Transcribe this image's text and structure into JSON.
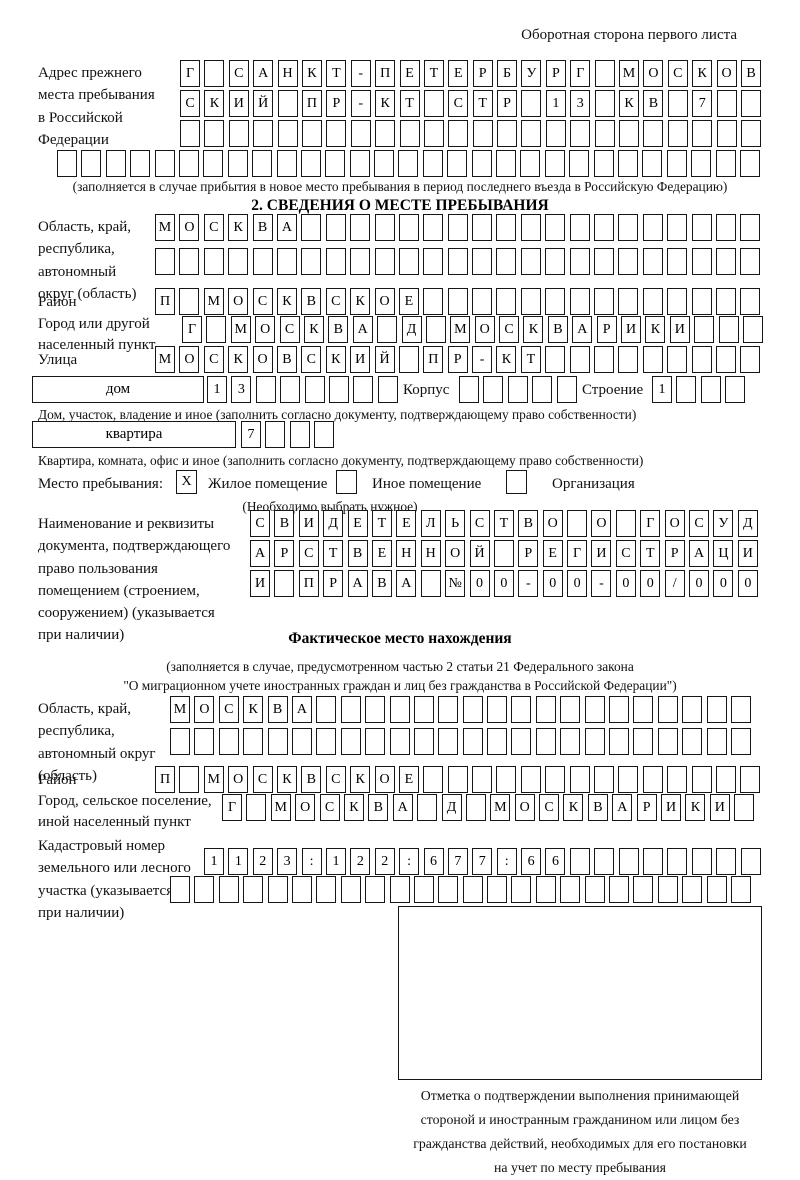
{
  "header_note": "Оборотная сторона первого листа",
  "prev_address": {
    "label": [
      "Адрес прежнего",
      "места пребывания",
      "в Российской",
      "Федерации"
    ],
    "row1": [
      "Г",
      "",
      "С",
      "А",
      "Н",
      "К",
      "Т",
      "-",
      "П",
      "Е",
      "Т",
      "Е",
      "Р",
      "Б",
      "У",
      "Р",
      "Г",
      "",
      "М",
      "О",
      "С",
      "К",
      "О",
      "В"
    ],
    "row2": [
      "С",
      "К",
      "И",
      "Й",
      "",
      "П",
      "Р",
      "-",
      "К",
      "Т",
      "",
      "С",
      "Т",
      "Р",
      "",
      "1",
      "3",
      "",
      "К",
      "В",
      "",
      "7",
      "",
      ""
    ],
    "caption": "(заполняется в случае прибытия в новое место пребывания в период последнего въезда в Российскую Федерацию)"
  },
  "section2": {
    "title": "2. СВЕДЕНИЯ О МЕСТЕ ПРЕБЫВАНИЯ",
    "region_label": [
      "Область, край,",
      "республика,",
      "автономный",
      "округ (область)"
    ],
    "region_row1": [
      "М",
      "О",
      "С",
      "К",
      "В",
      "А"
    ],
    "district_label": "Район",
    "district_row": [
      "П",
      "",
      "М",
      "О",
      "С",
      "К",
      "В",
      "С",
      "К",
      "О",
      "Е"
    ],
    "city_label": [
      "Город или другой",
      "населенный пункт"
    ],
    "city_row": [
      "Г",
      "",
      "М",
      "О",
      "С",
      "К",
      "В",
      "А",
      "",
      "Д",
      "",
      "М",
      "О",
      "С",
      "К",
      "В",
      "А",
      "Р",
      "И",
      "К",
      "И"
    ],
    "street_label": "Улица",
    "street_row": [
      "М",
      "О",
      "С",
      "К",
      "О",
      "В",
      "С",
      "К",
      "И",
      "Й",
      "",
      "П",
      "Р",
      "-",
      "К",
      "Т"
    ],
    "house_box_label": "дом",
    "house_cells": [
      "1",
      "3"
    ],
    "korpus_label": "Корпус",
    "stroenie_label": "Строение",
    "stroenie_cells": [
      "1"
    ],
    "house_caption": "Дом, участок, владение и иное (заполнить согласно документу, подтверждающему право собственности)",
    "flat_box_label": "квартира",
    "flat_cells": [
      "7"
    ],
    "flat_caption": "Квартира, комната, офис и иное (заполнить согласно документу, подтверждающему право собственности)",
    "stay_label": "Место пребывания:",
    "stay_checked": "X",
    "option_residential": "Жилое помещение",
    "option_other": "Иное помещение",
    "option_org": "Организация",
    "stay_note": "(Необходимо выбрать нужное)"
  },
  "doc": {
    "label": [
      "Наименование и реквизиты",
      "документа, подтверждающего",
      "право пользования",
      "помещением (строением,",
      "сооружением) (указывается",
      "при наличии)"
    ],
    "row1": [
      "С",
      "В",
      "И",
      "Д",
      "Е",
      "Т",
      "Е",
      "Л",
      "Ь",
      "С",
      "Т",
      "В",
      "О",
      "",
      "О",
      "",
      "Г",
      "О",
      "С",
      "У",
      "Д"
    ],
    "row2": [
      "А",
      "Р",
      "С",
      "Т",
      "В",
      "Е",
      "Н",
      "Н",
      "О",
      "Й",
      "",
      "Р",
      "Е",
      "Г",
      "И",
      "С",
      "Т",
      "Р",
      "А",
      "Ц",
      "И"
    ],
    "row3": [
      "И",
      "",
      "П",
      "Р",
      "А",
      "В",
      "А",
      "",
      "№",
      "0",
      "0",
      "-",
      "0",
      "0",
      "-",
      "0",
      "0",
      "/",
      "0",
      "0",
      "0"
    ]
  },
  "actual": {
    "title": "Фактическое место нахождения",
    "subtitle": [
      "(заполняется в случае, предусмотренном частью 2 статьи 21 Федерального закона",
      "\"О миграционном учете иностранных граждан и лиц без гражданства в Российской Федерации\")"
    ],
    "region_label": [
      "Область, край,",
      "республика,",
      "автономный округ",
      "(область)"
    ],
    "region_row1": [
      "М",
      "О",
      "С",
      "К",
      "В",
      "А"
    ],
    "district_label": "Район",
    "district_row": [
      "П",
      "",
      "М",
      "О",
      "С",
      "К",
      "В",
      "С",
      "К",
      "О",
      "Е"
    ],
    "city_label": [
      "Город, сельское поселение,",
      "иной населенный пункт"
    ],
    "city_row": [
      "Г",
      "",
      "М",
      "О",
      "С",
      "К",
      "В",
      "А",
      "",
      "Д",
      "",
      "М",
      "О",
      "С",
      "К",
      "В",
      "А",
      "Р",
      "И",
      "К",
      "И"
    ],
    "cadastre_label": [
      "Кадастровый номер",
      "земельного или лесного",
      "участка (указывается",
      "при наличии)"
    ],
    "cadastre_row1": [
      "1",
      "1",
      "2",
      "3",
      ":",
      "1",
      "2",
      "2",
      ":",
      "6",
      "7",
      "7",
      ":",
      "6",
      "6"
    ]
  },
  "stamp_caption": [
    "Отметка о подтверждении выполнения принимающей",
    "стороной и иностранным гражданином или лицом без",
    "гражданства действий, необходимых для его постановки",
    "на учет по месту пребывания"
  ]
}
